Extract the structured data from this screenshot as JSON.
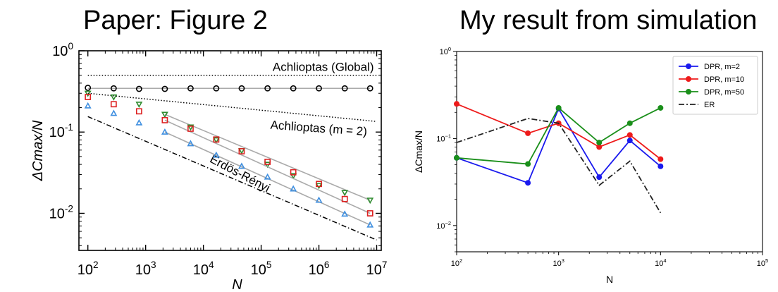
{
  "panels": {
    "left_title": "Paper: Figure 2",
    "right_title": "My result from simulation"
  },
  "chart_data": [
    {
      "type": "scatter",
      "xscale": "log",
      "yscale": "log",
      "xlim": [
        70,
        12000000
      ],
      "ylim": [
        0.0035,
        1
      ],
      "xlabel": "N",
      "ylabel": "ΔC_max/N",
      "x_ticks": [
        {
          "value": 100,
          "base": "10",
          "exp": "2"
        },
        {
          "value": 1000,
          "base": "10",
          "exp": "3"
        },
        {
          "value": 10000,
          "base": "10",
          "exp": "4"
        },
        {
          "value": 100000,
          "base": "10",
          "exp": "5"
        },
        {
          "value": 1000000,
          "base": "10",
          "exp": "6"
        },
        {
          "value": 10000000,
          "base": "10",
          "exp": "7"
        }
      ],
      "y_ticks": [
        {
          "value": 1,
          "base": "10",
          "exp": "0"
        },
        {
          "value": 0.1,
          "base": "10",
          "exp": "-1"
        },
        {
          "value": 0.01,
          "base": "10",
          "exp": "-2"
        }
      ],
      "reference_lines": [
        {
          "label": "Achlioptas (Global)",
          "style": "dotted",
          "x": [
            100,
            10000000
          ],
          "y": [
            0.5,
            0.5
          ]
        },
        {
          "label": "Achlioptas (m = 2)",
          "style": "dotted",
          "x": [
            100,
            10000000
          ],
          "y": [
            0.3,
            0.135
          ]
        },
        {
          "label": "Erdös-Rényi",
          "style": "dashdot",
          "x": [
            100,
            10000000
          ],
          "y": [
            0.155,
            0.0047
          ]
        }
      ],
      "series": [
        {
          "marker": "circle",
          "color": "#000000",
          "x": [
            100,
            280,
            770,
            2150,
            6000,
            16700,
            46000,
            129000,
            360000,
            1000000,
            2800000,
            7700000
          ],
          "y": [
            0.35,
            0.345,
            0.34,
            0.34,
            0.345,
            0.345,
            0.345,
            0.345,
            0.345,
            0.345,
            0.345,
            0.345
          ],
          "fit": [
            [
              100,
              0.345
            ],
            [
              7700000,
              0.345
            ]
          ]
        },
        {
          "marker": "triangle-down",
          "color": "#2e8b2e",
          "x": [
            100,
            280,
            770,
            2150,
            6000,
            16700,
            46000,
            129000,
            360000,
            1000000,
            2800000,
            7700000
          ],
          "y": [
            0.3,
            0.27,
            0.22,
            0.165,
            0.115,
            0.08,
            0.059,
            0.04,
            0.029,
            0.022,
            0.018,
            0.0145
          ],
          "fit": [
            [
              2150,
              0.165
            ],
            [
              7700000,
              0.0145
            ]
          ]
        },
        {
          "marker": "square",
          "color": "#dd2222",
          "x": [
            100,
            280,
            770,
            2150,
            6000,
            16700,
            46000,
            129000,
            360000,
            1000000,
            2800000,
            7700000
          ],
          "y": [
            0.27,
            0.22,
            0.18,
            0.14,
            0.11,
            0.081,
            0.058,
            0.043,
            0.032,
            0.023,
            0.015,
            0.01
          ],
          "fit": [
            [
              2150,
              0.14
            ],
            [
              7700000,
              0.01
            ]
          ]
        },
        {
          "marker": "triangle-up",
          "color": "#3f8fe0",
          "x": [
            100,
            280,
            770,
            2150,
            6000,
            16700,
            46000,
            129000,
            360000,
            1000000,
            2800000,
            7700000
          ],
          "y": [
            0.21,
            0.17,
            0.13,
            0.1,
            0.072,
            0.052,
            0.038,
            0.028,
            0.02,
            0.0145,
            0.0098,
            0.0072
          ],
          "fit": [
            [
              2150,
              0.1
            ],
            [
              7700000,
              0.0072
            ]
          ]
        }
      ]
    },
    {
      "type": "line",
      "xscale": "log",
      "yscale": "log",
      "xlim": [
        100,
        100000
      ],
      "ylim": [
        0.005,
        1
      ],
      "xlabel": "N",
      "ylabel": "ΔC_max/N",
      "grid": false,
      "legend_position": "top-right",
      "x_ticks": [
        {
          "value": 100,
          "base": "10",
          "exp": "2"
        },
        {
          "value": 1000,
          "base": "10",
          "exp": "3"
        },
        {
          "value": 10000,
          "base": "10",
          "exp": "4"
        },
        {
          "value": 100000,
          "base": "10",
          "exp": "5"
        }
      ],
      "y_ticks": [
        {
          "value": 1,
          "base": "10",
          "exp": "0"
        },
        {
          "value": 0.1,
          "base": "10",
          "exp": "−1"
        },
        {
          "value": 0.01,
          "base": "10",
          "exp": "−2"
        }
      ],
      "x": [
        100,
        500,
        1000,
        2500,
        5000,
        10000
      ],
      "series": [
        {
          "name": "DPR, m=2",
          "color": "#1a1aee",
          "style": "solid",
          "markers": true,
          "y": [
            0.06,
            0.031,
            0.22,
            0.036,
            0.095,
            0.048
          ]
        },
        {
          "name": "DPR, m=10",
          "color": "#ee1a1a",
          "style": "solid",
          "markers": true,
          "y": [
            0.25,
            0.115,
            0.15,
            0.08,
            0.11,
            0.058
          ]
        },
        {
          "name": "DPR, m=50",
          "color": "#1a8f1a",
          "style": "solid",
          "markers": true,
          "y": [
            0.06,
            0.051,
            0.225,
            0.09,
            0.15,
            0.225
          ]
        },
        {
          "name": "ER",
          "color": "#222222",
          "style": "dashdot",
          "markers": false,
          "y": [
            0.09,
            0.17,
            0.15,
            0.029,
            0.055,
            0.014
          ]
        }
      ]
    }
  ]
}
